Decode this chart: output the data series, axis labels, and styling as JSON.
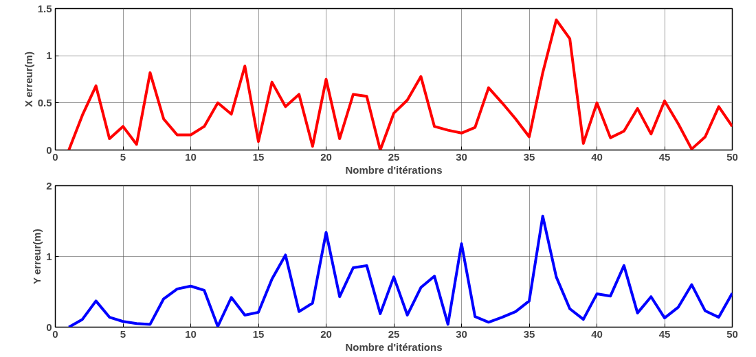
{
  "chart_data": [
    {
      "type": "line",
      "xlabel": "Nombre d'itérations",
      "ylabel": "X erreur(m)",
      "x": [
        1,
        2,
        3,
        4,
        5,
        6,
        7,
        8,
        9,
        10,
        11,
        12,
        13,
        14,
        15,
        16,
        17,
        18,
        19,
        20,
        21,
        22,
        23,
        24,
        25,
        26,
        27,
        28,
        29,
        30,
        31,
        32,
        33,
        34,
        35,
        36,
        37,
        38,
        39,
        40,
        41,
        42,
        43,
        44,
        45,
        46,
        47,
        48,
        49,
        50
      ],
      "series": [
        {
          "color": "#ff0000",
          "values": [
            0,
            0.37,
            0.68,
            0.12,
            0.25,
            0.06,
            0.82,
            0.33,
            0.16,
            0.16,
            0.25,
            0.5,
            0.38,
            0.89,
            0.09,
            0.72,
            0.46,
            0.59,
            0.04,
            0.75,
            0.12,
            0.59,
            0.57,
            0.0,
            0.39,
            0.53,
            0.78,
            0.25,
            0.21,
            0.18,
            0.24,
            0.66,
            0.5,
            0.33,
            0.14,
            0.82,
            1.38,
            1.18,
            0.07,
            0.5,
            0.13,
            0.2,
            0.44,
            0.17,
            0.52,
            0.28,
            0.01,
            0.14,
            0.46,
            0.25
          ]
        }
      ],
      "xlim": [
        0,
        50
      ],
      "xticks": [
        0,
        5,
        10,
        15,
        20,
        25,
        30,
        35,
        40,
        45,
        50
      ],
      "ylim": [
        0,
        1.5
      ],
      "yticks": [
        0,
        0.5,
        1,
        1.5
      ],
      "grid": true,
      "line_style": "solid"
    },
    {
      "type": "line",
      "xlabel": "Nombre d'itérations",
      "ylabel": "Y erreur(m)",
      "x": [
        1,
        2,
        3,
        4,
        5,
        6,
        7,
        8,
        9,
        10,
        11,
        12,
        13,
        14,
        15,
        16,
        17,
        18,
        19,
        20,
        21,
        22,
        23,
        24,
        25,
        26,
        27,
        28,
        29,
        30,
        31,
        32,
        33,
        34,
        35,
        36,
        37,
        38,
        39,
        40,
        41,
        42,
        43,
        44,
        45,
        46,
        47,
        48,
        49,
        50
      ],
      "series": [
        {
          "color": "#0000ff",
          "values": [
            0,
            0.11,
            0.37,
            0.14,
            0.08,
            0.05,
            0.04,
            0.4,
            0.54,
            0.58,
            0.52,
            0.01,
            0.42,
            0.17,
            0.21,
            0.68,
            1.02,
            0.22,
            0.34,
            1.34,
            0.43,
            0.84,
            0.87,
            0.19,
            0.71,
            0.17,
            0.56,
            0.72,
            0.04,
            1.18,
            0.15,
            0.07,
            0.14,
            0.22,
            0.37,
            1.57,
            0.71,
            0.26,
            0.11,
            0.47,
            0.44,
            0.87,
            0.2,
            0.43,
            0.13,
            0.28,
            0.6,
            0.23,
            0.14,
            0.48
          ]
        }
      ],
      "xlim": [
        0,
        50
      ],
      "xticks": [
        0,
        5,
        10,
        15,
        20,
        25,
        30,
        35,
        40,
        45,
        50
      ],
      "ylim": [
        0,
        2
      ],
      "yticks": [
        0,
        1,
        2
      ],
      "grid": true,
      "line_style": "solid"
    }
  ]
}
